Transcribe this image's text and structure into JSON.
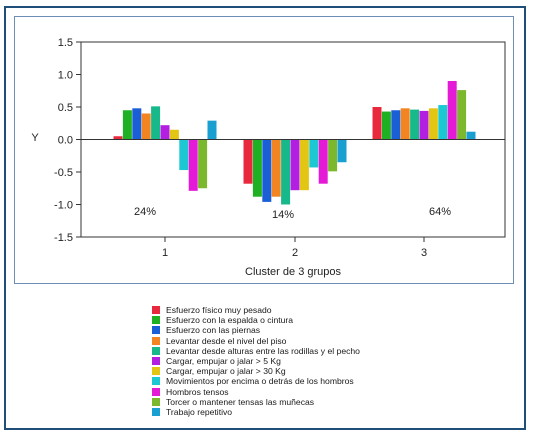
{
  "chart_data": {
    "type": "bar",
    "categories": [
      "1",
      "2",
      "3"
    ],
    "xlabel": "Cluster de 3 grupos",
    "ylabel": "Y",
    "ylim": [
      -1.5,
      1.5
    ],
    "yticks": [
      "-1.5",
      "-1.0",
      "-0.5",
      "0.0",
      "0.5",
      "1.0",
      "1.5"
    ],
    "grid": false,
    "legend_position": "bottom",
    "annotations": [
      "24%",
      "14%",
      "64%"
    ],
    "series": [
      {
        "name": "Esfuerzo físico muy pesado",
        "color": "#e8283c",
        "values": [
          0.05,
          -0.68,
          0.5
        ]
      },
      {
        "name": "Esfuerzo con la espalda o cintura",
        "color": "#1fb024",
        "values": [
          0.45,
          -0.88,
          0.43
        ]
      },
      {
        "name": "Esfuerzo con las piernas",
        "color": "#1b5fd6",
        "values": [
          0.48,
          -0.96,
          0.45
        ]
      },
      {
        "name": "Levantar desde el nivel del piso",
        "color": "#f28522",
        "values": [
          0.4,
          -0.88,
          0.48
        ]
      },
      {
        "name": "Levantar desde alturas entre las rodillas y el pecho",
        "color": "#17b88a",
        "values": [
          0.51,
          -1.0,
          0.46
        ]
      },
      {
        "name": "Cargar, empujar o jalar > 5 Kg",
        "color": "#b21fe0",
        "values": [
          0.22,
          -0.78,
          0.44
        ]
      },
      {
        "name": "Cargar, empujar o jalar > 30 Kg",
        "color": "#e3c614",
        "values": [
          0.15,
          -0.78,
          0.48
        ]
      },
      {
        "name": "Movimientos por encima o detrás de los hombros",
        "color": "#1cc8d2",
        "values": [
          -0.47,
          -0.43,
          0.53
        ]
      },
      {
        "name": "Hombros tensos",
        "color": "#e41ad6",
        "values": [
          -0.79,
          -0.68,
          0.9
        ]
      },
      {
        "name": "Torcer o mantener tensas las muñecas",
        "color": "#7cb82d",
        "values": [
          -0.75,
          -0.49,
          0.76
        ]
      },
      {
        "name": "Trabajo repetitivo",
        "color": "#1a9fd1",
        "values": [
          0.29,
          -0.35,
          0.12
        ]
      }
    ]
  }
}
